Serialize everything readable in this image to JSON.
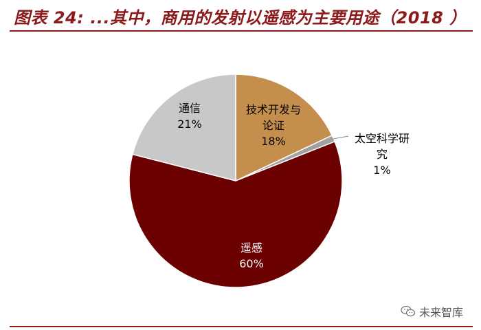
{
  "header": {
    "title": "图表 24: ...其中，商用的发射以遥感为主要用途（2018 ）"
  },
  "watermark": {
    "text": "未来智库",
    "icon": "wechat-icon"
  },
  "chart_data": {
    "type": "pie",
    "title": "图表 24: ...其中，商用的发射以遥感为主要用途（2018 ）",
    "slices": [
      {
        "label": "技术开发与论证",
        "value": 18,
        "value_label": "18%",
        "color": "#c48e4c"
      },
      {
        "label": "太空科学研究",
        "value": 1,
        "value_label": "1%",
        "color": "#a0a0a0"
      },
      {
        "label": "遥感",
        "value": 60,
        "value_label": "60%",
        "color": "#6b0000"
      },
      {
        "label": "通信",
        "value": 21,
        "value_label": "21%",
        "color": "#c8c8c8"
      }
    ],
    "start_angle_deg": 0,
    "direction": "clockwise",
    "legend": "none",
    "label_color": "#000000",
    "label_color_dark": "#ffffff"
  }
}
